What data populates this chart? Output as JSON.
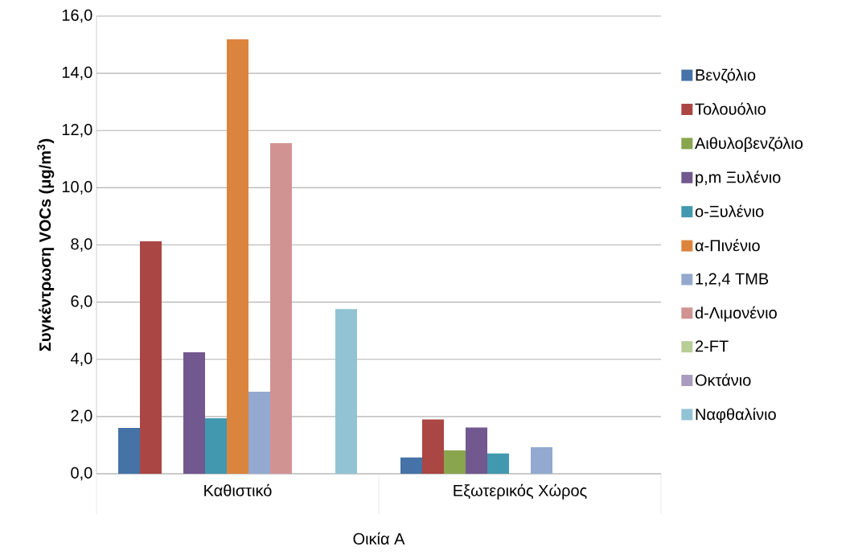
{
  "chart_data": {
    "type": "bar",
    "ylabel": "Συγκέντρωση VOCs (μg/m$^{3}$)",
    "xlabel": "Οικία A",
    "categories": [
      "Καθιστικό",
      "Εξωτερικός Χώρος"
    ],
    "series": [
      {
        "name": "Βενζόλιο",
        "color": "#4572a7",
        "values": [
          1.6,
          0.57
        ]
      },
      {
        "name": "Τολουόλιο",
        "color": "#aa4643",
        "values": [
          8.13,
          1.9
        ]
      },
      {
        "name": "Αιθυλοβενζόλιο",
        "color": "#89a54e",
        "values": [
          null,
          0.82
        ]
      },
      {
        "name": "p,m Ξυλένιο",
        "color": "#71588f",
        "values": [
          4.25,
          1.62
        ]
      },
      {
        "name": "o-Ξυλένιο",
        "color": "#4198af",
        "values": [
          1.94,
          0.71
        ]
      },
      {
        "name": "α-Πινένιο",
        "color": "#db843d",
        "values": [
          15.19,
          null
        ]
      },
      {
        "name": "1,2,4 TMB",
        "color": "#93a9cf",
        "values": [
          2.87,
          0.93
        ]
      },
      {
        "name": "d-Λιμονένιο",
        "color": "#d19392",
        "values": [
          11.56,
          null
        ]
      },
      {
        "name": "2-FT",
        "color": "#b9cd96",
        "values": [
          null,
          null
        ]
      },
      {
        "name": "Οκτάνιο",
        "color": "#a99bbd",
        "values": [
          null,
          null
        ]
      },
      {
        "name": "Ναφθαλίνιο",
        "color": "#92c3d5",
        "values": [
          5.76,
          null
        ]
      }
    ],
    "ylim": [
      0,
      16
    ],
    "yticks": [
      {
        "value": 0,
        "label": "0,0"
      },
      {
        "value": 2,
        "label": "2,0"
      },
      {
        "value": 4,
        "label": "4,0"
      },
      {
        "value": 6,
        "label": "6,0"
      },
      {
        "value": 8,
        "label": "8,0"
      },
      {
        "value": 10,
        "label": "10,0"
      },
      {
        "value": 12,
        "label": "12,0"
      },
      {
        "value": 14,
        "label": "14,0"
      },
      {
        "value": 16,
        "label": "16,0"
      }
    ],
    "grid": "y",
    "legend": "right"
  }
}
